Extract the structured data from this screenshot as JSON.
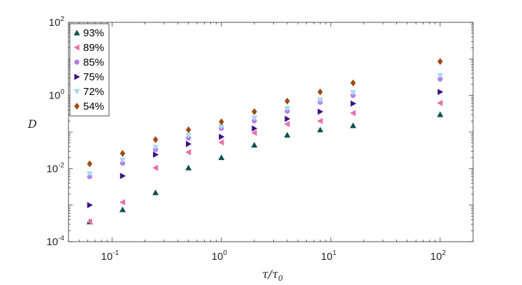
{
  "chart_data": {
    "type": "scatter",
    "xscale": "log",
    "yscale": "log",
    "xlim": [
      0.04,
      200
    ],
    "ylim": [
      0.0001,
      100
    ],
    "xticks": [
      {
        "value": 0.1,
        "label": "10",
        "exp": "-1"
      },
      {
        "value": 1,
        "label": "10",
        "exp": "0"
      },
      {
        "value": 10,
        "label": "10",
        "exp": "1"
      },
      {
        "value": 100,
        "label": "10",
        "exp": "2"
      }
    ],
    "yticks": [
      {
        "value": 0.0001,
        "label": "10",
        "exp": "-4"
      },
      {
        "value": 0.01,
        "label": "10",
        "exp": "-2"
      },
      {
        "value": 1,
        "label": "10",
        "exp": "0"
      },
      {
        "value": 100,
        "label": "10",
        "exp": "2"
      }
    ],
    "xlabel": "τ/τ0",
    "ylabel": "D",
    "grid": false,
    "legend_position": "top-left",
    "x": [
      0.0625,
      0.125,
      0.25,
      0.5,
      1,
      2,
      4,
      8,
      16,
      100
    ],
    "series": [
      {
        "name": "93%",
        "marker": "triangle-up",
        "color": "#0d5150",
        "values": [
          0.00035,
          0.00075,
          0.0022,
          0.0105,
          0.02,
          0.044,
          0.083,
          0.115,
          0.15,
          0.3
        ]
      },
      {
        "name": "89%",
        "marker": "triangle-left",
        "color": "#ec6fac",
        "values": [
          0.00035,
          0.0012,
          0.0105,
          0.028,
          0.052,
          0.095,
          0.165,
          0.2,
          0.33,
          0.62
        ]
      },
      {
        "name": "85%",
        "marker": "circle",
        "color": "#b07ee8",
        "values": [
          0.006,
          0.014,
          0.033,
          0.068,
          0.125,
          0.2,
          0.37,
          0.65,
          1.0,
          2.8
        ]
      },
      {
        "name": "75%",
        "marker": "triangle-right",
        "color": "#3d1286",
        "values": [
          0.001,
          0.0063,
          0.024,
          0.047,
          0.074,
          0.125,
          0.23,
          0.36,
          0.6,
          1.25
        ]
      },
      {
        "name": "72%",
        "marker": "triangle-down",
        "color": "#acd8f2",
        "values": [
          0.0072,
          0.017,
          0.038,
          0.08,
          0.14,
          0.24,
          0.44,
          0.75,
          1.2,
          3.5
        ]
      },
      {
        "name": "54%",
        "marker": "diamond",
        "color": "#9e4b14",
        "values": [
          0.0135,
          0.026,
          0.062,
          0.115,
          0.19,
          0.36,
          0.7,
          1.25,
          2.2,
          8.5
        ]
      }
    ]
  }
}
